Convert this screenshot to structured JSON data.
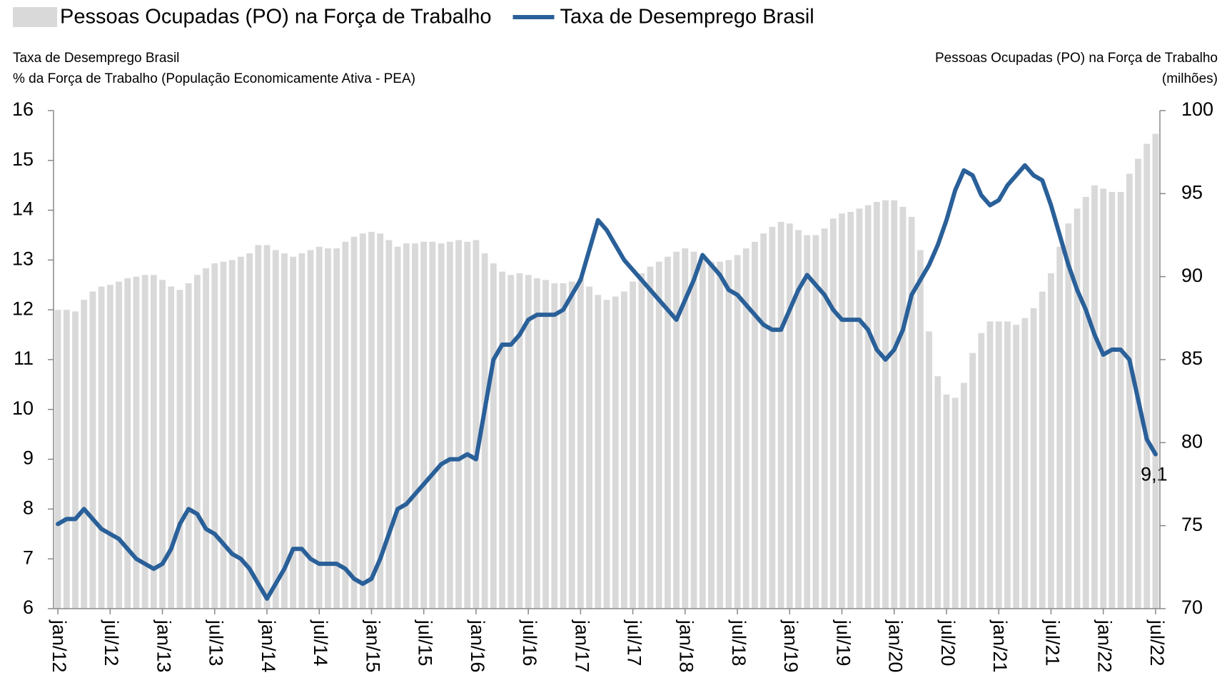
{
  "chart_data": {
    "type": "combo",
    "y_label": [
      "Taxa de Desemprego Brasil",
      "% da Força de Trabalho (População Economicamente Ativa - PEA)"
    ],
    "y2_label": [
      "Pessoas Ocupadas (PO) na Força de Trabalho",
      "(milhões)"
    ],
    "legend": "top",
    "categories": [
      "jan/12",
      null,
      null,
      null,
      null,
      null,
      "jul/12",
      null,
      null,
      null,
      null,
      null,
      "jan/13",
      null,
      null,
      null,
      null,
      null,
      "jul/13",
      null,
      null,
      null,
      null,
      null,
      "jan/14",
      null,
      null,
      null,
      null,
      null,
      "jul/14",
      null,
      null,
      null,
      null,
      null,
      "jan/15",
      null,
      null,
      null,
      null,
      null,
      "jul/15",
      null,
      null,
      null,
      null,
      null,
      "jan/16",
      null,
      null,
      null,
      null,
      null,
      "jul/16",
      null,
      null,
      null,
      null,
      null,
      "jan/17",
      null,
      null,
      null,
      null,
      null,
      "jul/17",
      null,
      null,
      null,
      null,
      null,
      "jan/18",
      null,
      null,
      null,
      null,
      null,
      "jul/18",
      null,
      null,
      null,
      null,
      null,
      "jan/19",
      null,
      null,
      null,
      null,
      null,
      "jul/19",
      null,
      null,
      null,
      null,
      null,
      "jan/20",
      null,
      null,
      null,
      null,
      null,
      "jul/20",
      null,
      null,
      null,
      null,
      null,
      "jan/21",
      null,
      null,
      null,
      null,
      null,
      "jul/21",
      null,
      null,
      null,
      null,
      null,
      "jan/22",
      null,
      null,
      null,
      null,
      null,
      "jul/22"
    ],
    "series": [
      {
        "name": "Pessoas Ocupadas (PO) na Força de Trabalho",
        "type": "bar",
        "axis": "y2",
        "color": "#d9d9d9",
        "values": [
          88.0,
          88.0,
          87.9,
          88.6,
          89.1,
          89.4,
          89.5,
          89.7,
          89.9,
          90.0,
          90.1,
          90.1,
          89.8,
          89.4,
          89.2,
          89.6,
          90.1,
          90.5,
          90.8,
          90.9,
          91.0,
          91.2,
          91.4,
          91.9,
          91.9,
          91.6,
          91.4,
          91.2,
          91.4,
          91.6,
          91.8,
          91.7,
          91.7,
          92.1,
          92.4,
          92.6,
          92.7,
          92.6,
          92.2,
          91.8,
          92.0,
          92.0,
          92.1,
          92.1,
          92.0,
          92.1,
          92.2,
          92.1,
          92.2,
          91.4,
          90.8,
          90.3,
          90.1,
          90.2,
          90.1,
          89.9,
          89.8,
          89.6,
          89.6,
          89.7,
          89.9,
          89.4,
          88.9,
          88.6,
          88.8,
          89.1,
          89.7,
          90.2,
          90.6,
          90.9,
          91.2,
          91.5,
          91.7,
          91.5,
          91.0,
          90.9,
          90.9,
          91.0,
          91.3,
          91.7,
          92.1,
          92.6,
          93.0,
          93.3,
          93.2,
          92.8,
          92.5,
          92.5,
          92.9,
          93.5,
          93.8,
          93.9,
          94.1,
          94.3,
          94.5,
          94.6,
          94.6,
          94.2,
          93.6,
          91.6,
          86.7,
          84.0,
          82.9,
          82.7,
          83.6,
          85.4,
          86.6,
          87.3,
          87.3,
          87.3,
          87.1,
          87.5,
          88.1,
          89.1,
          90.2,
          91.8,
          93.2,
          94.1,
          94.8,
          95.5,
          95.3,
          95.1,
          95.1,
          96.2,
          97.1,
          98.0,
          98.6
        ]
      },
      {
        "name": "Taxa de Desemprego Brasil",
        "type": "line",
        "color": "#2a6099",
        "values": [
          7.7,
          7.8,
          7.8,
          8.0,
          7.8,
          7.6,
          7.5,
          7.4,
          7.2,
          7.0,
          6.9,
          6.8,
          6.9,
          7.2,
          7.7,
          8.0,
          7.9,
          7.6,
          7.5,
          7.3,
          7.1,
          7.0,
          6.8,
          6.5,
          6.2,
          6.5,
          6.8,
          7.2,
          7.2,
          7.0,
          6.9,
          6.9,
          6.9,
          6.8,
          6.6,
          6.5,
          6.6,
          7.0,
          7.5,
          8.0,
          8.1,
          8.3,
          8.5,
          8.7,
          8.9,
          9.0,
          9.0,
          9.1,
          9.0,
          10.0,
          11.0,
          11.3,
          11.3,
          11.5,
          11.8,
          11.9,
          11.9,
          11.9,
          12.0,
          12.3,
          12.6,
          13.2,
          13.8,
          13.6,
          13.3,
          13.0,
          12.8,
          12.6,
          12.4,
          12.2,
          12.0,
          11.8,
          12.2,
          12.6,
          13.1,
          12.9,
          12.7,
          12.4,
          12.3,
          12.1,
          11.9,
          11.7,
          11.6,
          11.6,
          12.0,
          12.4,
          12.7,
          12.5,
          12.3,
          12.0,
          11.8,
          11.8,
          11.8,
          11.6,
          11.2,
          11.0,
          11.2,
          11.6,
          12.3,
          12.6,
          12.9,
          13.3,
          13.8,
          14.4,
          14.8,
          14.7,
          14.3,
          14.1,
          14.2,
          14.5,
          14.7,
          14.9,
          14.7,
          14.6,
          14.1,
          13.5,
          12.9,
          12.4,
          12.0,
          11.5,
          11.1,
          11.2,
          11.2,
          11.0,
          10.2,
          9.4,
          9.1
        ],
        "value_labels": [
          null,
          null,
          null,
          null,
          null,
          null,
          null,
          null,
          null,
          null,
          null,
          null,
          null,
          null,
          null,
          null,
          null,
          null,
          null,
          null,
          null,
          null,
          null,
          null,
          null,
          null,
          null,
          null,
          null,
          null,
          null,
          null,
          null,
          null,
          null,
          null,
          null,
          null,
          null,
          null,
          null,
          null,
          null,
          null,
          null,
          null,
          null,
          null,
          null,
          null,
          null,
          null,
          null,
          null,
          null,
          null,
          null,
          null,
          null,
          null,
          null,
          null,
          null,
          null,
          null,
          null,
          null,
          null,
          null,
          null,
          null,
          null,
          null,
          null,
          null,
          null,
          null,
          null,
          null,
          null,
          null,
          null,
          null,
          null,
          null,
          null,
          null,
          null,
          null,
          null,
          null,
          null,
          null,
          null,
          null,
          null,
          null,
          null,
          null,
          null,
          null,
          null,
          null,
          null,
          null,
          null,
          null,
          null,
          null,
          null,
          null,
          null,
          null,
          null,
          null,
          null,
          null,
          null,
          null,
          null,
          null,
          null,
          null,
          null,
          null,
          null,
          "9,1"
        ]
      }
    ],
    "ylim": [
      6,
      16
    ],
    "yticks": [
      6,
      7,
      8,
      9,
      10,
      11,
      12,
      13,
      14,
      15,
      16
    ],
    "y2lim": [
      70,
      100
    ],
    "y2ticks": [
      70,
      75,
      80,
      85,
      90,
      95,
      100
    ]
  }
}
